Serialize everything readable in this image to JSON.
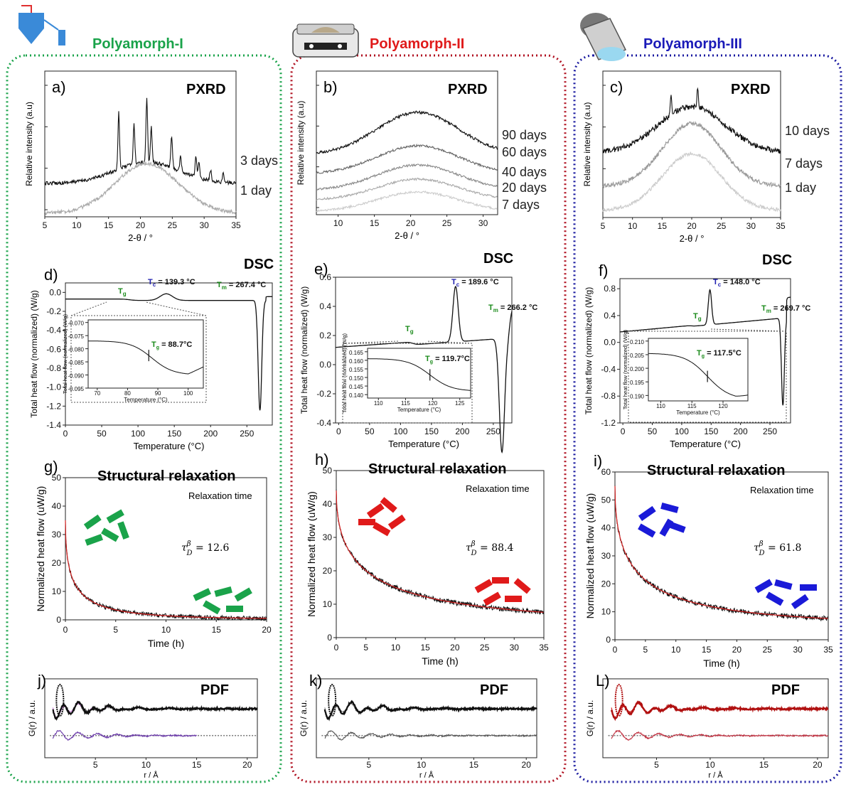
{
  "panels": [
    {
      "title": "Polyamorph-I",
      "color": "#1aa34a",
      "icon": "spray-dryer-icon",
      "pxrd": {
        "label": "a)",
        "title": "PXRD",
        "xlabel": "2-θ / °",
        "ylabel": "Relative intensity (a.u)",
        "ticks": [
          "5",
          "10",
          "15",
          "20",
          "25",
          "30",
          "35"
        ],
        "curves": [
          {
            "name": "3 days",
            "color": "#111111",
            "crystalline": true
          },
          {
            "name": "1 day",
            "color": "#aaaaaa",
            "crystalline": false
          }
        ]
      },
      "dsc": {
        "label": "d)",
        "title": "DSC",
        "xlabel": "Temperature (°C)",
        "ylabel": "Total heat flow (normalized) (W/g)",
        "xticks": [
          "0",
          "50",
          "100",
          "150",
          "200",
          "250"
        ],
        "yticks": [
          "0.0",
          "-0.2",
          "-0.4",
          "-0.6",
          "-0.8",
          "-1.0",
          "-1.2",
          "-1.4"
        ],
        "tg": "T",
        "tg_sub": "g",
        "tc": "T",
        "tc_sub": "c",
        "tc_val": " = 139.3 °C",
        "tm": "T",
        "tm_sub": "m",
        "tm_val": " = 267.4 °C",
        "inset": {
          "yticks": [
            "-0.070",
            "-0.075",
            "-0.080",
            "-0.085",
            "-0.090",
            "-0.095"
          ],
          "xticks": [
            "70",
            "80",
            "90",
            "100"
          ],
          "ylabel": "Total heat flow (normalized) (W/g)",
          "xlabel": "Temperature (°C)",
          "tg_val": " = 88.7°C"
        }
      },
      "relax": {
        "label": "g)",
        "title": "Structural relaxation",
        "subtitle": "Relaxation time",
        "xlabel": "Time (h)",
        "ylabel": "Normalized heat flow (uW/g)",
        "xticks": [
          "0",
          "5",
          "10",
          "15",
          "20"
        ],
        "yticks": [
          "0",
          "10",
          "20",
          "30",
          "40",
          "50"
        ],
        "tau": "τ",
        "tau_sup": "β",
        "tau_sub": "D",
        "tau_val": " = 12.6"
      },
      "pdf": {
        "label": "j)",
        "title": "PDF",
        "xlabel": "r / Å",
        "ylabel": "G(r) / a.u.",
        "xticks": [
          "5",
          "10",
          "15",
          "20"
        ],
        "fit_color": "#c77ad6",
        "diff_color": "#6a3aa8"
      }
    },
    {
      "title": "Polyamorph-II",
      "color": "#e01a1a",
      "icon": "hot-plate-icon",
      "pxrd": {
        "label": "b)",
        "title": "PXRD",
        "xlabel": "2-θ / °",
        "ylabel": "Relative intensity (a.u)",
        "ticks": [
          "10",
          "15",
          "20",
          "25",
          "30"
        ],
        "curves": [
          {
            "name": "90 days",
            "color": "#111111"
          },
          {
            "name": "60 days",
            "color": "#666666"
          },
          {
            "name": "40 days",
            "color": "#888888"
          },
          {
            "name": "20 days",
            "color": "#aaaaaa"
          },
          {
            "name": "7 days",
            "color": "#cccccc"
          }
        ]
      },
      "dsc": {
        "label": "e)",
        "title": "DSC",
        "xlabel": "Temperature (°C)",
        "ylabel": "Total heat flow (normalized) (W/g)",
        "xticks": [
          "0",
          "50",
          "100",
          "150",
          "200",
          "250"
        ],
        "yticks": [
          "0.6",
          "0.4",
          "0.2",
          "0.0",
          "-0.2",
          "-0.4"
        ],
        "tg": "T",
        "tg_sub": "g",
        "tc": "T",
        "tc_sub": "c",
        "tc_val": " = 189.6 °C",
        "tm": "T",
        "tm_sub": "m",
        "tm_val": " = 266.2 °C",
        "inset": {
          "yticks": [
            "0.165",
            "0.160",
            "0.155",
            "0.150",
            "0.145",
            "0.140"
          ],
          "xticks": [
            "110",
            "115",
            "120",
            "125"
          ],
          "ylabel": "Total heat flow (normalized) (W/g)",
          "xlabel": "Temperature (°C)",
          "tg_val": " = 119.7°C"
        }
      },
      "relax": {
        "label": "h)",
        "title": "Structural relaxation",
        "subtitle": "Relaxation time",
        "xlabel": "Time (h)",
        "ylabel": "Normalized heat flow (uW/g)",
        "xticks": [
          "0",
          "5",
          "10",
          "15",
          "20",
          "25",
          "30",
          "35"
        ],
        "yticks": [
          "0",
          "10",
          "20",
          "30",
          "40",
          "50"
        ],
        "tau": "τ",
        "tau_sup": "β",
        "tau_sub": "D",
        "tau_val": " = 88.4"
      },
      "pdf": {
        "label": "k)",
        "title": "PDF",
        "xlabel": "r / Å",
        "ylabel": "G(r) / a.u.",
        "xticks": [
          "5",
          "10",
          "15",
          "20"
        ],
        "fit_color": "#777777",
        "diff_color": "#555555"
      }
    },
    {
      "title": "Polyamorph-III",
      "color": "#1a1ab8",
      "icon": "ball-mill-jar-icon",
      "pxrd": {
        "label": "c)",
        "title": "PXRD",
        "xlabel": "2-θ / °",
        "ylabel": "Relative intensity (a.u)",
        "ticks": [
          "5",
          "10",
          "15",
          "20",
          "25",
          "30",
          "35"
        ],
        "curves": [
          {
            "name": "10 days",
            "color": "#111111"
          },
          {
            "name": "7 days",
            "color": "#9a9a9a"
          },
          {
            "name": "1 day",
            "color": "#cccccc"
          }
        ]
      },
      "dsc": {
        "label": "f)",
        "title": "DSC",
        "xlabel": "Temperature (°C)",
        "ylabel": "Total heat flow (normalized) (W/g)",
        "xticks": [
          "0",
          "50",
          "100",
          "150",
          "200",
          "250"
        ],
        "yticks": [
          "0.8",
          "0.4",
          "0.0",
          "-0.4",
          "-0.8",
          "-1.2"
        ],
        "tg": "T",
        "tg_sub": "g",
        "tc": "T",
        "tc_sub": "c",
        "tc_val": " = 148.0 °C",
        "tm": "T",
        "tm_sub": "m",
        "tm_val": " = 269.7 °C",
        "inset": {
          "yticks": [
            "0.210",
            "0.205",
            "0.200",
            "0.195",
            "0.190"
          ],
          "xticks": [
            "110",
            "115",
            "120"
          ],
          "ylabel": "Total heat flow (normalized) (W/g)",
          "xlabel": "Temperature (°C)",
          "tg_val": " = 117.5°C"
        }
      },
      "relax": {
        "label": "i)",
        "title": "Structural relaxation",
        "subtitle": "Relaxation time",
        "xlabel": "Time (h)",
        "ylabel": "Normalized heat flow (uW/g)",
        "xticks": [
          "0",
          "5",
          "10",
          "15",
          "20",
          "25",
          "30",
          "35"
        ],
        "yticks": [
          "0",
          "10",
          "20",
          "30",
          "40",
          "50",
          "60"
        ],
        "tau": "τ",
        "tau_sup": "β",
        "tau_sub": "D",
        "tau_val": " = 61.8"
      },
      "pdf": {
        "label": "L)",
        "title": "PDF",
        "xlabel": "r / Å",
        "ylabel": "G(r) / a.u.",
        "xticks": [
          "5",
          "10",
          "15",
          "20"
        ],
        "fit_color": "#d42020",
        "diff_color": "#c03040"
      }
    }
  ],
  "chart_data": [
    {
      "type": "line",
      "title": "PXRD",
      "panel": "a)",
      "xlabel": "2-θ / °",
      "ylabel": "Relative intensity (a.u)",
      "xlim": [
        5,
        35
      ],
      "series": [
        {
          "name": "3 days",
          "peaks_2theta": [
            16.6,
            19.0,
            21.0,
            21.7,
            24.9,
            28.7,
            29.2
          ]
        },
        {
          "name": "1 day",
          "halo_center": 21
        }
      ]
    },
    {
      "type": "line",
      "title": "PXRD",
      "panel": "b)",
      "xlabel": "2-θ / °",
      "ylabel": "Relative intensity (a.u)",
      "xlim": [
        7,
        32
      ],
      "series": [
        {
          "name": "90 days",
          "halo_center": 21
        },
        {
          "name": "60 days",
          "halo_center": 21
        },
        {
          "name": "40 days",
          "halo_center": 21
        },
        {
          "name": "20 days",
          "halo_center": 21
        },
        {
          "name": "7 days",
          "halo_center": 21
        }
      ]
    },
    {
      "type": "line",
      "title": "PXRD",
      "panel": "c)",
      "xlabel": "2-θ / °",
      "ylabel": "Relative intensity (a.u)",
      "xlim": [
        5,
        35
      ],
      "series": [
        {
          "name": "10 days",
          "halo_center": 20
        },
        {
          "name": "7 days",
          "halo_center": 20
        },
        {
          "name": "1 day",
          "halo_center": 20
        }
      ]
    },
    {
      "type": "line",
      "title": "DSC",
      "panel": "d)",
      "xlabel": "Temperature (°C)",
      "ylabel": "Total heat flow (normalized) (W/g)",
      "xlim": [
        0,
        280
      ],
      "ylim": [
        -1.4,
        0.1
      ],
      "annotations": {
        "Tg": 88.7,
        "Tc": 139.3,
        "Tm": 267.4
      }
    },
    {
      "type": "line",
      "title": "DSC",
      "panel": "e)",
      "xlabel": "Temperature (°C)",
      "ylabel": "Total heat flow (normalized) (W/g)",
      "xlim": [
        0,
        280
      ],
      "ylim": [
        -0.4,
        0.6
      ],
      "annotations": {
        "Tg": 119.7,
        "Tc": 189.6,
        "Tm": 266.2
      }
    },
    {
      "type": "line",
      "title": "DSC",
      "panel": "f)",
      "xlabel": "Temperature (°C)",
      "ylabel": "Total heat flow (normalized) (W/g)",
      "xlim": [
        0,
        280
      ],
      "ylim": [
        -1.2,
        0.9
      ],
      "annotations": {
        "Tg": 117.5,
        "Tc": 148.0,
        "Tm": 269.7
      }
    },
    {
      "type": "line",
      "title": "Structural relaxation",
      "panel": "g)",
      "xlabel": "Time (h)",
      "ylabel": "Normalized heat flow (uW/g)",
      "xlim": [
        0,
        20
      ],
      "ylim": [
        0,
        50
      ],
      "tau_D_beta": 12.6,
      "x": [
        0,
        1,
        2,
        3,
        5,
        8,
        12,
        16,
        20
      ],
      "y": [
        35,
        15,
        8,
        5,
        3.5,
        2.5,
        1.8,
        1.2,
        0.9
      ]
    },
    {
      "type": "line",
      "title": "Structural relaxation",
      "panel": "h)",
      "xlabel": "Time (h)",
      "ylabel": "Normalized heat flow (uW/g)",
      "xlim": [
        0,
        35
      ],
      "ylim": [
        0,
        50
      ],
      "tau_D_beta": 88.4,
      "x": [
        0,
        2,
        4,
        6,
        10,
        15,
        20,
        25,
        30,
        35
      ],
      "y": [
        44,
        30,
        22,
        18,
        13,
        11,
        9.5,
        8.5,
        7.5,
        7
      ]
    },
    {
      "type": "line",
      "title": "Structural relaxation",
      "panel": "i)",
      "xlabel": "Time (h)",
      "ylabel": "Normalized heat flow (uW/g)",
      "xlim": [
        0,
        35
      ],
      "ylim": [
        0,
        60
      ],
      "tau_D_beta": 61.8,
      "x": [
        0,
        2,
        4,
        6,
        10,
        15,
        20,
        25,
        30,
        35
      ],
      "y": [
        55,
        35,
        26,
        21,
        16,
        13,
        11,
        10,
        8.5,
        7.5
      ]
    },
    {
      "type": "line",
      "title": "PDF",
      "panel": "j)",
      "xlabel": "r / Å",
      "ylabel": "G(r) / a.u.",
      "xlim": [
        0,
        21
      ]
    },
    {
      "type": "line",
      "title": "PDF",
      "panel": "k)",
      "xlabel": "r / Å",
      "ylabel": "G(r) / a.u.",
      "xlim": [
        0,
        21
      ]
    },
    {
      "type": "line",
      "title": "PDF",
      "panel": "L)",
      "xlabel": "r / Å",
      "ylabel": "G(r) / a.u.",
      "xlim": [
        0,
        21
      ]
    }
  ]
}
